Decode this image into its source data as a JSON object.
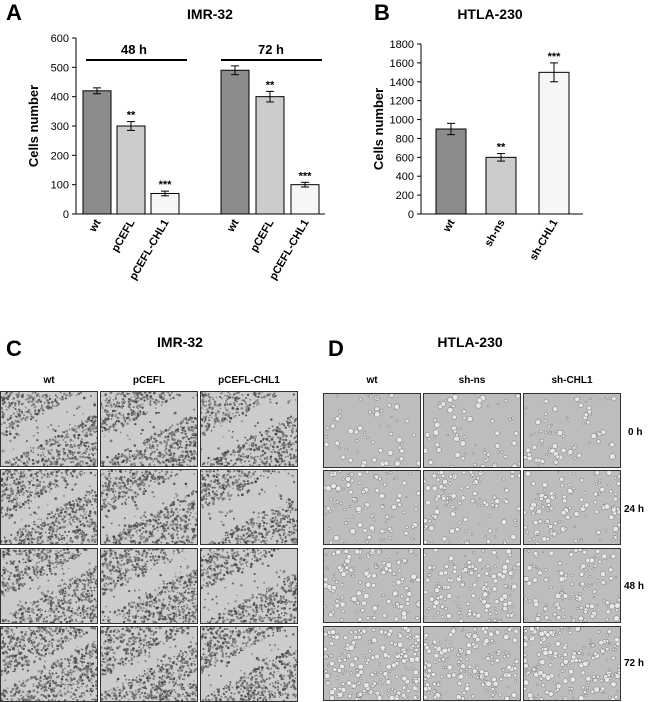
{
  "panel_A": {
    "letter": "A",
    "title": "IMR-32",
    "ylabel": "Cells number",
    "yticks": [
      "0",
      "100",
      "200",
      "300",
      "400",
      "500",
      "600"
    ],
    "groups": [
      "48 h",
      "72 h"
    ]
  },
  "panel_B": {
    "letter": "B",
    "title": "HTLA-230",
    "ylabel": "Cells number",
    "yticks": [
      "0",
      "200",
      "400",
      "600",
      "800",
      "1000",
      "1200",
      "1400",
      "1600",
      "1800"
    ]
  },
  "panel_C": {
    "letter": "C",
    "title": "IMR-32",
    "columns": [
      "wt",
      "pCEFL",
      "pCEFL-CHL1"
    ]
  },
  "panel_D": {
    "letter": "D",
    "title": "HTLA-230",
    "columns": [
      "wt",
      "sh-ns",
      "sh-CHL1"
    ],
    "rows": [
      "0 h",
      "24 h",
      "48 h",
      "72 h"
    ]
  },
  "chart_data": [
    {
      "type": "bar",
      "title": "IMR-32",
      "ylabel": "Cells number",
      "ylim": [
        0,
        600
      ],
      "categories": [
        "wt",
        "pCEFL",
        "pCEFL-CHL1",
        "wt",
        "pCEFL",
        "pCEFL-CHL1"
      ],
      "groups": [
        {
          "label": "48 h",
          "indices": [
            0,
            1,
            2
          ]
        },
        {
          "label": "72 h",
          "indices": [
            3,
            4,
            5
          ]
        }
      ],
      "values": [
        420,
        300,
        70,
        490,
        400,
        100
      ],
      "errors": [
        10,
        15,
        8,
        15,
        18,
        8
      ],
      "significance": [
        "",
        "**",
        "***",
        "",
        "**",
        "***"
      ],
      "colors": [
        "#8c8c8c",
        "#cccccc",
        "#f6f6f6",
        "#8c8c8c",
        "#cccccc",
        "#f6f6f6"
      ]
    },
    {
      "type": "bar",
      "title": "HTLA-230",
      "ylabel": "Cells number",
      "ylim": [
        0,
        1800
      ],
      "categories": [
        "wt",
        "sh-ns",
        "sh-CHL1"
      ],
      "values": [
        900,
        600,
        1500
      ],
      "errors": [
        60,
        40,
        100
      ],
      "significance": [
        "",
        "**",
        "***"
      ],
      "colors": [
        "#8c8c8c",
        "#cccccc",
        "#f6f6f6"
      ]
    }
  ]
}
